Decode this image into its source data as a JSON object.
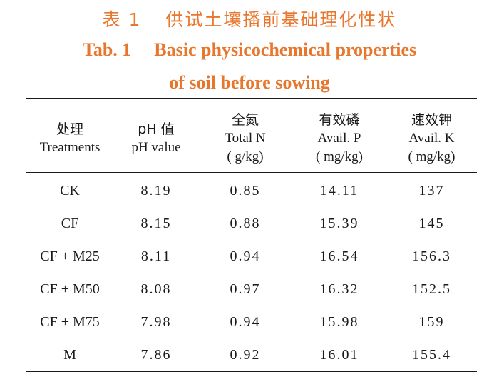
{
  "caption": {
    "cn_label": "表 1",
    "cn_title": "供试土壤播前基础理化性状",
    "en_label": "Tab. 1",
    "en_title_line1": "Basic physicochemical properties",
    "en_title_line2": "of soil before sowing"
  },
  "header": {
    "col0": {
      "cn": "处理",
      "en": "Treatments"
    },
    "col1": {
      "cn": "pH 值",
      "en": "pH value"
    },
    "col2": {
      "cn": "全氮",
      "en": "Total N",
      "unit": "( g/kg)"
    },
    "col3": {
      "cn": "有效磷",
      "en": "Avail. P",
      "unit": "( mg/kg)"
    },
    "col4": {
      "cn": "速效钾",
      "en": "Avail. K",
      "unit": "( mg/kg)"
    }
  },
  "rows": [
    {
      "treatment": "CK",
      "ph": "8.19",
      "total_n": "0.85",
      "avail_p": "14.11",
      "avail_k": "137"
    },
    {
      "treatment": "CF",
      "ph": "8.15",
      "total_n": "0.88",
      "avail_p": "15.39",
      "avail_k": "145"
    },
    {
      "treatment": "CF + M25",
      "ph": "8.11",
      "total_n": "0.94",
      "avail_p": "16.54",
      "avail_k": "156.3"
    },
    {
      "treatment": "CF + M50",
      "ph": "8.08",
      "total_n": "0.97",
      "avail_p": "16.32",
      "avail_k": "152.5"
    },
    {
      "treatment": "CF + M75",
      "ph": "7.98",
      "total_n": "0.94",
      "avail_p": "15.98",
      "avail_k": "159"
    },
    {
      "treatment": "M",
      "ph": "7.86",
      "total_n": "0.92",
      "avail_p": "16.01",
      "avail_k": "155.4"
    }
  ],
  "colors": {
    "caption": "#e8772e",
    "text": "#1a1a1a"
  }
}
